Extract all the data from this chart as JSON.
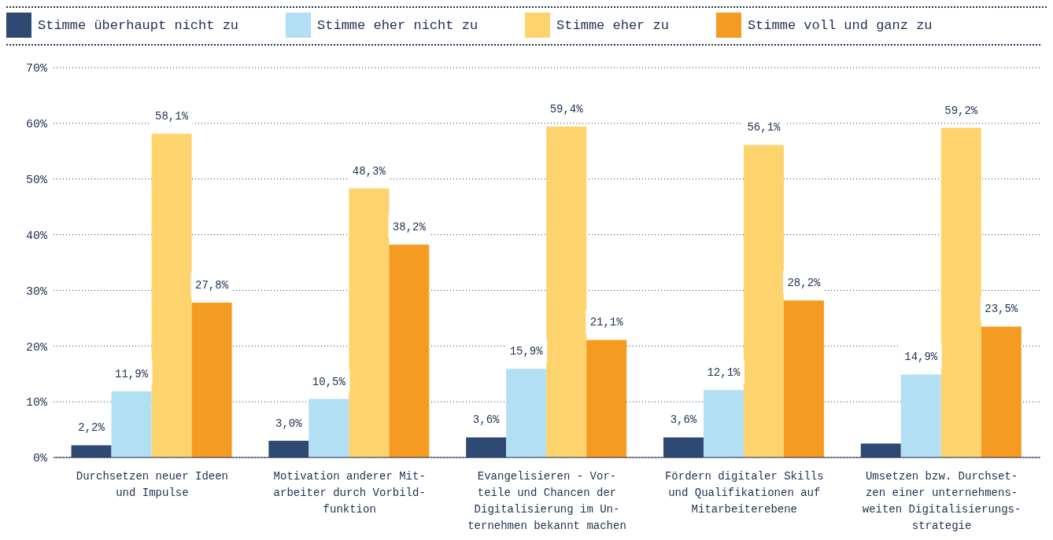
{
  "chart_data": {
    "type": "bar",
    "categories": [
      "Durchsetzen neuer Ideen\nund Impulse",
      "Motivation anderer Mit-\narbeiter durch Vorbild-\nfunktion",
      "Evangelisieren - Vor-\nteile und Chancen der\nDigitalisierung im Un-\nternehmen bekannt machen",
      "Fördern digitaler Skills\nund Qualifikationen auf\nMitarbeiterebene",
      "Umsetzen bzw. Durchset-\nzen einer unternehmens-\nweiten Digitalisierungs-\nstrategie"
    ],
    "series": [
      {
        "name": "Stimme überhaupt nicht zu",
        "color": "#2e4a72",
        "values": [
          2.2,
          3.0,
          3.6,
          3.6,
          2.5
        ],
        "value_labels": [
          "2,2%",
          "3,0%",
          "3,6%",
          "3,6%",
          null
        ]
      },
      {
        "name": "Stimme eher nicht zu",
        "color": "#b3dff5",
        "values": [
          11.9,
          10.5,
          15.9,
          12.1,
          14.9
        ],
        "value_labels": [
          "11,9%",
          "10,5%",
          "15,9%",
          "12,1%",
          "14,9%"
        ]
      },
      {
        "name": "Stimme eher zu",
        "color": "#fdd36e",
        "values": [
          58.1,
          48.3,
          59.4,
          56.1,
          59.2
        ],
        "value_labels": [
          "58,1%",
          "48,3%",
          "59,4%",
          "56,1%",
          "59,2%"
        ]
      },
      {
        "name": "Stimme voll und ganz zu",
        "color": "#f59b22",
        "values": [
          27.8,
          38.2,
          21.1,
          28.2,
          23.5
        ],
        "value_labels": [
          "27,8%",
          "38,2%",
          "21,1%",
          "28,2%",
          "23,5%"
        ]
      }
    ],
    "ylim": [
      0,
      70
    ],
    "yticks": [
      {
        "value": 0,
        "label": "0%"
      },
      {
        "value": 10,
        "label": "10%"
      },
      {
        "value": 20,
        "label": "20%"
      },
      {
        "value": 30,
        "label": "30%"
      },
      {
        "value": 40,
        "label": "40%"
      },
      {
        "value": 50,
        "label": "50%"
      },
      {
        "value": 60,
        "label": "60%"
      },
      {
        "value": 70,
        "label": "70%"
      }
    ],
    "grid": "y",
    "legend": "top left"
  }
}
